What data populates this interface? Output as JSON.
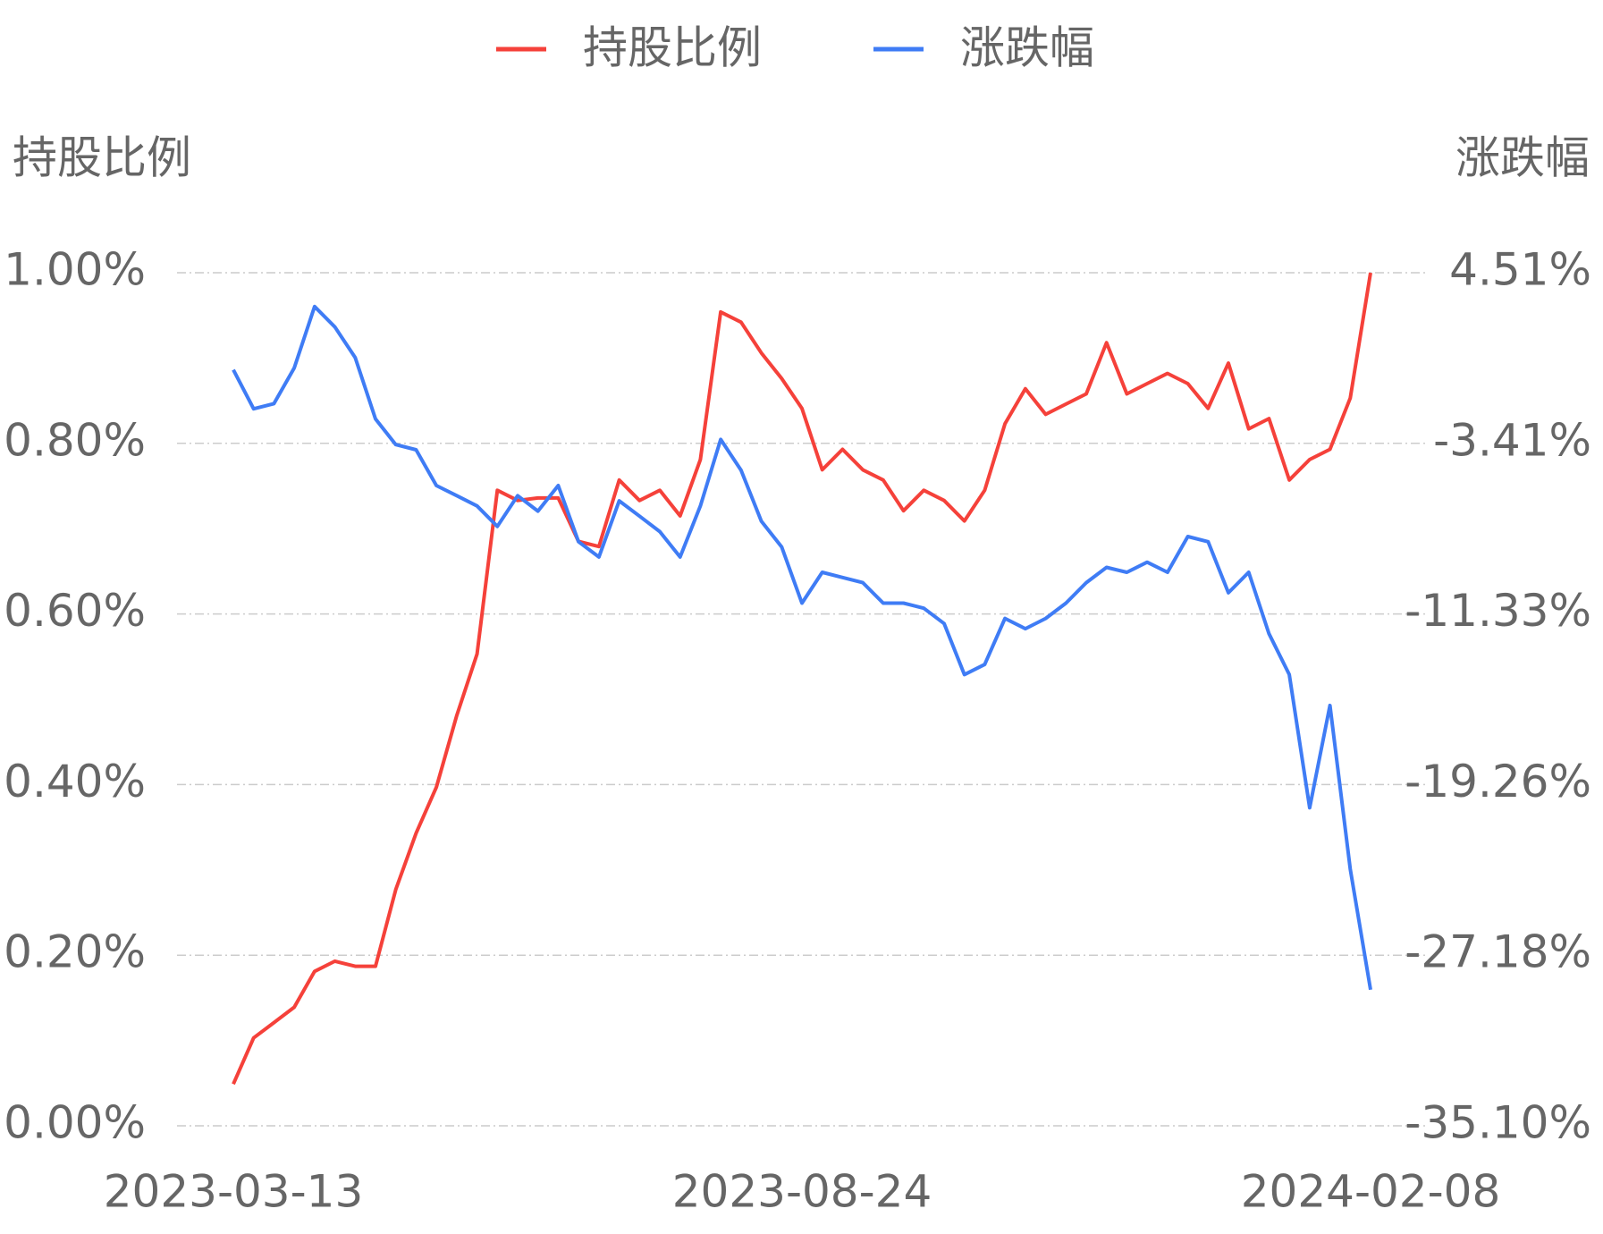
{
  "chart_data": {
    "type": "line",
    "y_title": "持股比例",
    "y2_title": "涨跌幅",
    "categories": [
      "2023-03-13",
      null,
      null,
      null,
      null,
      null,
      null,
      null,
      null,
      null,
      null,
      null,
      null,
      null,
      null,
      null,
      null,
      null,
      null,
      null,
      null,
      null,
      null,
      null,
      null,
      null,
      null,
      null,
      "2023-08-24",
      null,
      null,
      null,
      null,
      null,
      null,
      null,
      null,
      null,
      null,
      null,
      null,
      null,
      null,
      null,
      null,
      null,
      null,
      null,
      null,
      null,
      null,
      null,
      null,
      null,
      null,
      null,
      "2024-02-08"
    ],
    "ylim": [
      0,
      1
    ],
    "yticks": [
      {
        "value": 0,
        "label": "0.00%"
      },
      {
        "value": 0.2,
        "label": "0.20%"
      },
      {
        "value": 0.4,
        "label": "0.40%"
      },
      {
        "value": 0.6,
        "label": "0.60%"
      },
      {
        "value": 0.8,
        "label": "0.80%"
      },
      {
        "value": 1,
        "label": "1.00%"
      }
    ],
    "y2lim": [
      -35.1,
      4.51
    ],
    "y2ticks": [
      {
        "value": -35.1,
        "label": "-35.10%"
      },
      {
        "value": -27.18,
        "label": "-27.18%"
      },
      {
        "value": -19.26,
        "label": "-19.26%"
      },
      {
        "value": -11.33,
        "label": "-11.33%"
      },
      {
        "value": -3.41,
        "label": "-3.41%"
      },
      {
        "value": 4.51,
        "label": "4.51%"
      }
    ],
    "grid": true,
    "series": [
      {
        "name": "持股比例",
        "color": "#f5413a",
        "values": [
          0.049,
          0.103,
          0.121,
          0.139,
          0.181,
          0.193,
          0.187,
          0.187,
          0.277,
          0.343,
          0.397,
          0.481,
          0.553,
          0.745,
          0.733,
          0.736,
          0.736,
          0.685,
          0.679,
          0.757,
          0.733,
          0.745,
          0.715,
          0.781,
          0.954,
          0.942,
          0.906,
          0.876,
          0.841,
          0.769,
          0.793,
          0.769,
          0.757,
          0.721,
          0.745,
          0.733,
          0.709,
          0.745,
          0.823,
          0.864,
          0.834,
          0.846,
          0.858,
          0.918,
          0.858,
          0.87,
          0.882,
          0.87,
          0.841,
          0.894,
          0.817,
          0.829,
          0.757,
          0.781,
          0.793,
          0.853,
          1.0
        ]
      },
      {
        "name": "涨跌幅",
        "color": "#3f7cf5",
        "axis": "y2",
        "values": [
          0.0,
          -1.81,
          -1.57,
          0.09,
          2.94,
          1.99,
          0.57,
          -2.28,
          -3.47,
          -3.71,
          -5.37,
          -5.84,
          -6.32,
          -7.27,
          -5.84,
          -6.56,
          -5.37,
          -7.98,
          -8.69,
          -6.08,
          -6.79,
          -7.51,
          -8.69,
          -6.32,
          -3.23,
          -4.66,
          -7.03,
          -8.22,
          -10.83,
          -9.4,
          -9.64,
          -9.88,
          -10.83,
          -10.83,
          -11.07,
          -11.78,
          -14.15,
          -13.68,
          -11.54,
          -12.02,
          -11.54,
          -10.83,
          -9.88,
          -9.17,
          -9.4,
          -8.93,
          -9.4,
          -7.74,
          -7.98,
          -10.35,
          -9.4,
          -12.25,
          -14.15,
          -20.33,
          -15.58,
          -23.18,
          -28.78
        ]
      }
    ]
  }
}
